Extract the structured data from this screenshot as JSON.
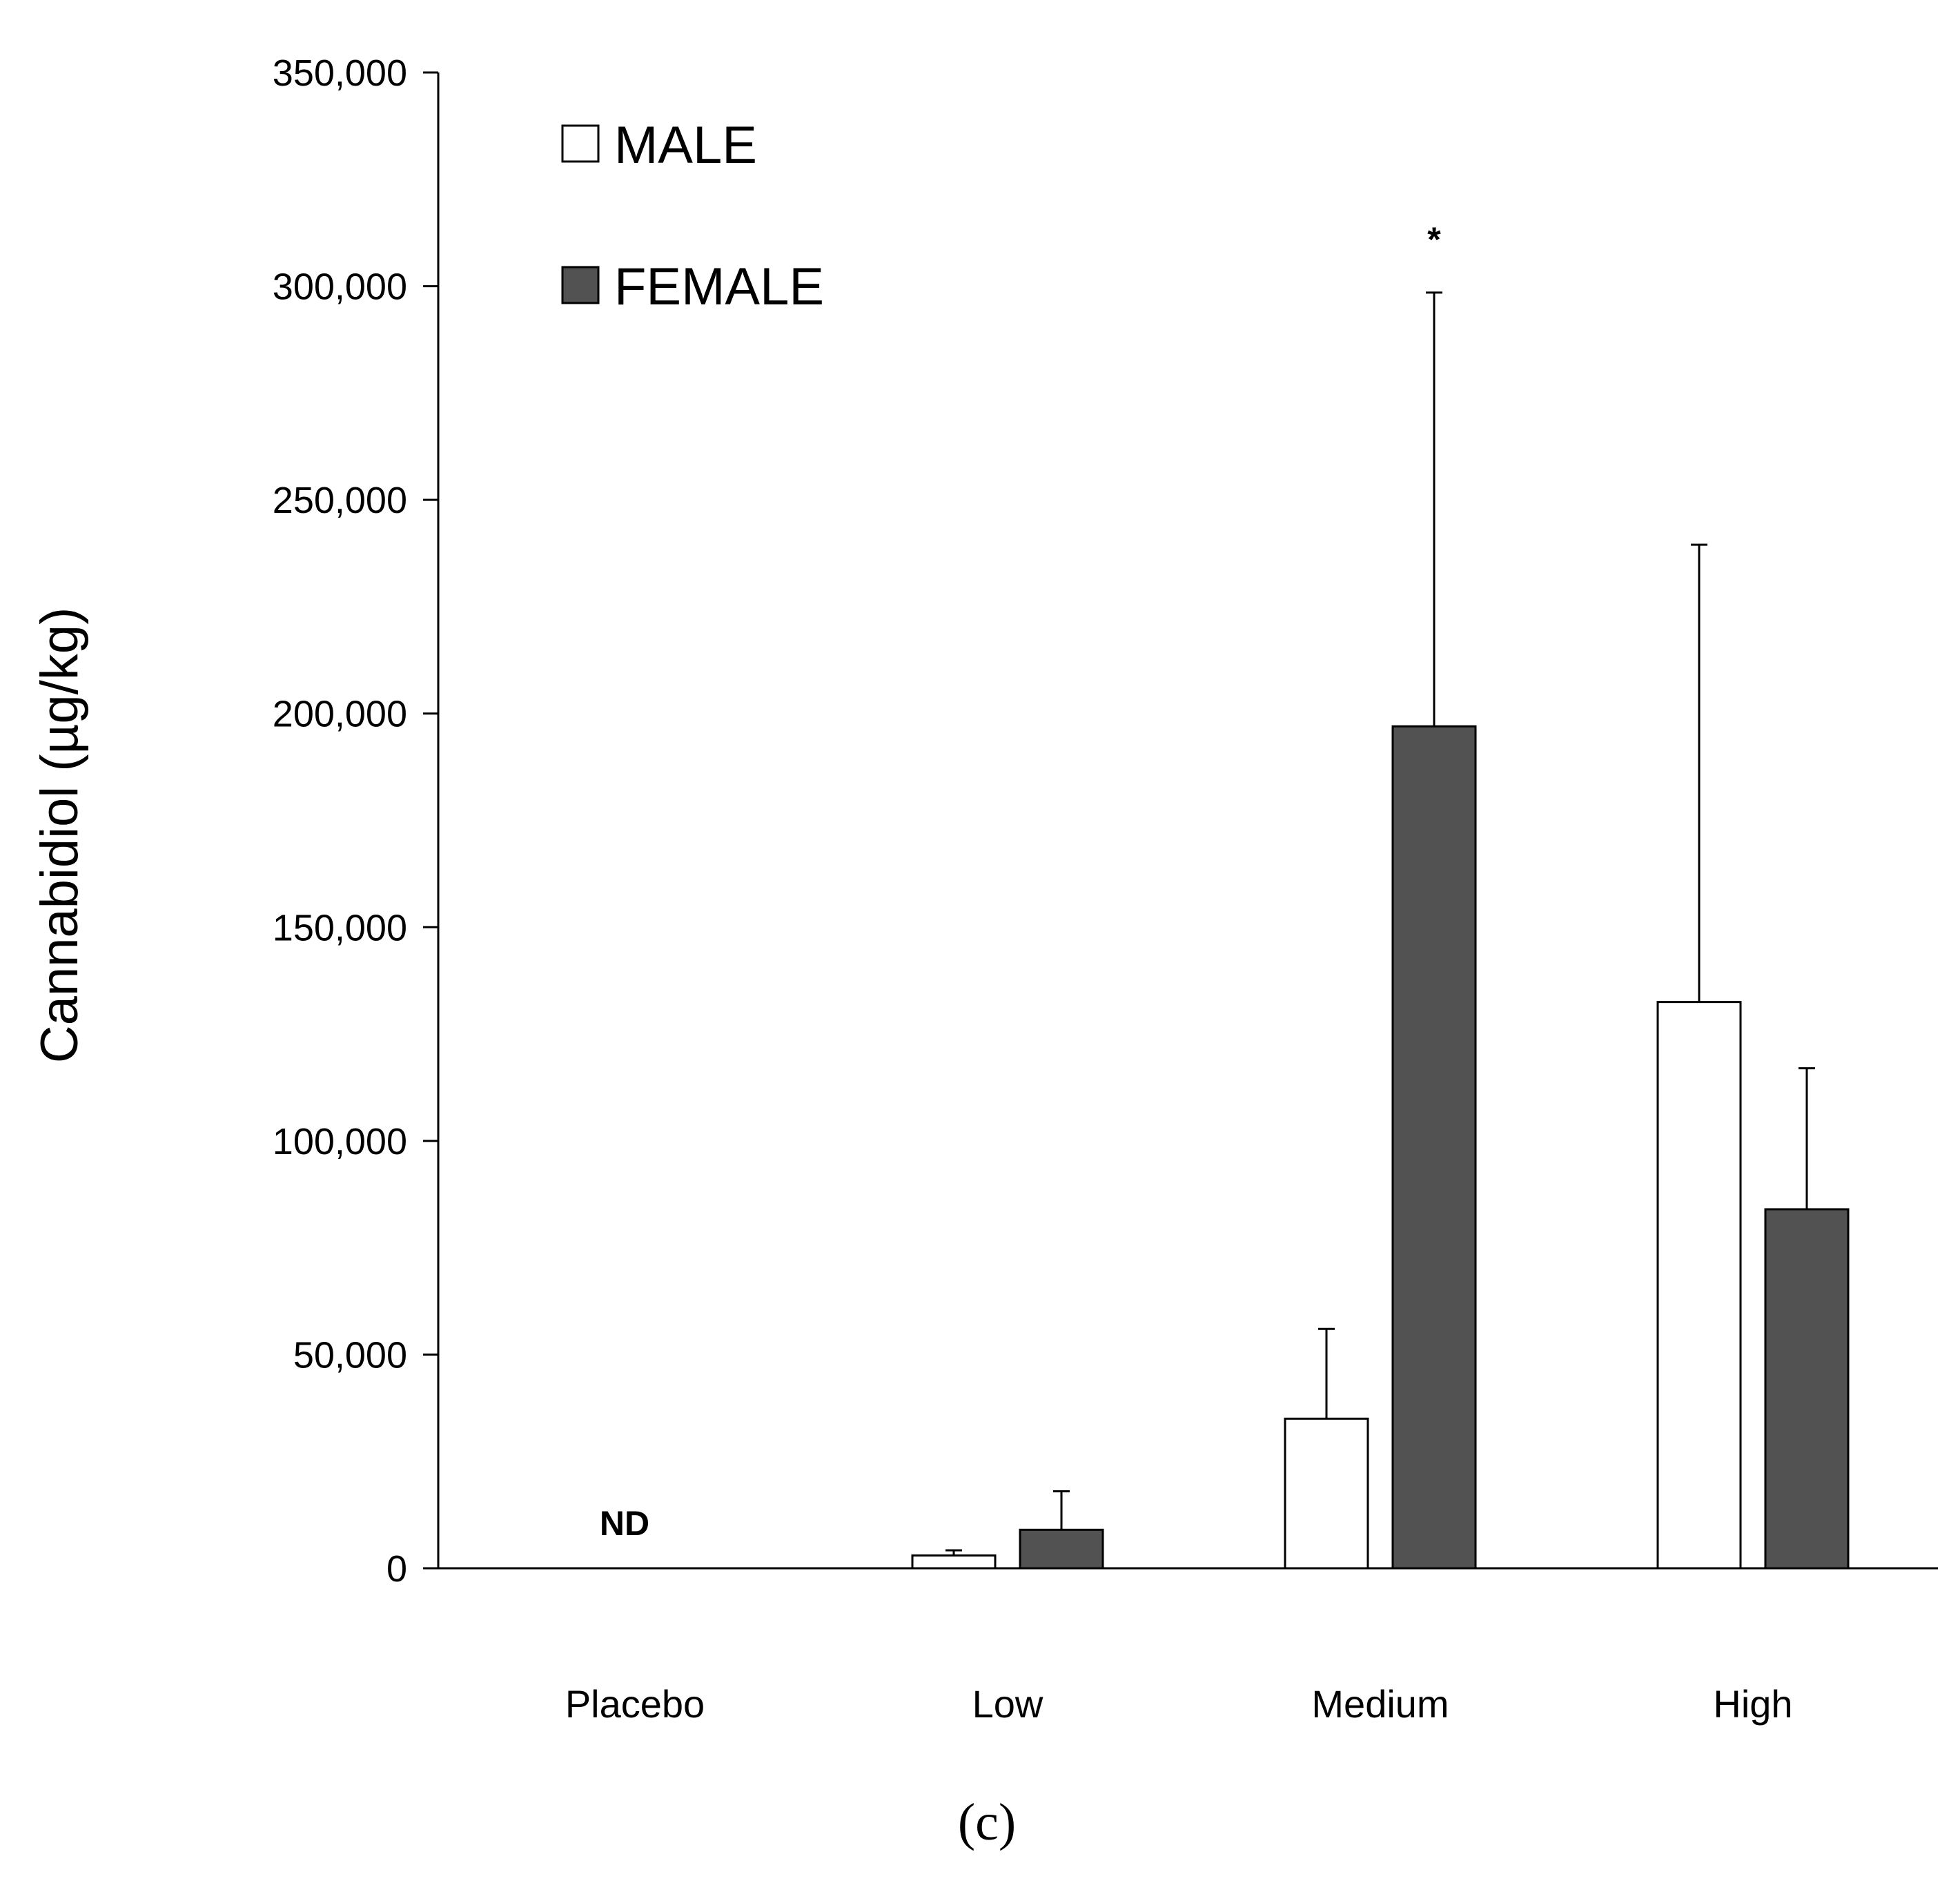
{
  "chart_data": {
    "type": "bar",
    "title": "",
    "xlabel": "",
    "ylabel": "Cannabidiol (µg/kg)",
    "ylim": [
      0,
      350000
    ],
    "yticks": [
      0,
      50000,
      100000,
      150000,
      200000,
      250000,
      300000,
      350000
    ],
    "ytick_labels": [
      "0",
      "50,000",
      "100,000",
      "150,000",
      "200,000",
      "250,000",
      "300,000",
      "350,000"
    ],
    "categories": [
      "Placebo",
      "Low",
      "Medium",
      "High"
    ],
    "series": [
      {
        "name": "MALE",
        "color": "#ffffff",
        "values": [
          0,
          3000,
          35000,
          132500
        ],
        "errors": [
          0,
          1200,
          21000,
          107000
        ]
      },
      {
        "name": "FEMALE",
        "color": "#525252",
        "values": [
          0,
          9000,
          197000,
          84000
        ],
        "errors": [
          0,
          9000,
          101500,
          33000
        ]
      }
    ],
    "annotations": [
      {
        "text": "ND",
        "category": "Placebo"
      },
      {
        "text": "*",
        "category": "Medium",
        "series": "FEMALE"
      }
    ],
    "legend": "top-left",
    "grid": false
  },
  "caption": "(c)"
}
